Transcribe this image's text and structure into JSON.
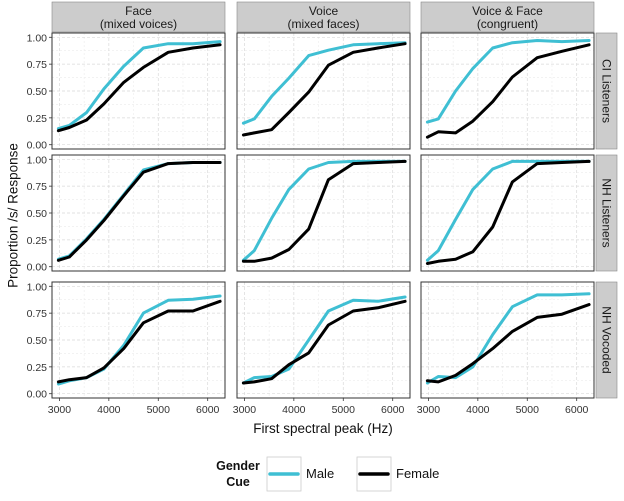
{
  "chart_data": {
    "type": "line",
    "ylabel": "Proportion /s/ Response",
    "xlabel": "First spectral peak (Hz)",
    "xlim": [
      2850,
      6350
    ],
    "ylim": [
      -0.04,
      1.04
    ],
    "x_ticks": [
      3000,
      4000,
      5000,
      6000
    ],
    "x_tick_labels": [
      "3000",
      "4000",
      "5000",
      "6000"
    ],
    "y_ticks": [
      0,
      0.25,
      0.5,
      0.75,
      1
    ],
    "y_tick_labels": [
      "0.00",
      "0.25",
      "0.50",
      "0.75",
      "1.00"
    ],
    "columns": [
      {
        "line1": "Face",
        "line2": "(mixed voices)"
      },
      {
        "line1": "Voice",
        "line2": "(mixed faces)"
      },
      {
        "line1": "Voice & Face",
        "line2": "(congruent)"
      }
    ],
    "rows": [
      "CI Listeners",
      "NH Listeners",
      "NH Vocoded"
    ],
    "legend": {
      "title_line1": "Gender",
      "title_line2": "Cue",
      "position": "bottom",
      "entries": [
        {
          "label": "Male",
          "color": "#3fbfd3"
        },
        {
          "label": "Female",
          "color": "#000000"
        }
      ]
    },
    "colors": {
      "male": "#3fbfd3",
      "female": "#000000",
      "strip": "#cccccc",
      "grid": "#d9d9d9"
    },
    "x": [
      2980,
      3200,
      3550,
      3900,
      4300,
      4700,
      5200,
      5700,
      6250
    ],
    "panels": [
      {
        "row": 0,
        "col": 0,
        "series": [
          {
            "name": "Male",
            "values": [
              0.15,
              0.18,
              0.3,
              0.52,
              0.73,
              0.9,
              0.94,
              0.94,
              0.96
            ]
          },
          {
            "name": "Female",
            "values": [
              0.13,
              0.16,
              0.23,
              0.38,
              0.58,
              0.72,
              0.86,
              0.9,
              0.93
            ]
          }
        ]
      },
      {
        "row": 0,
        "col": 1,
        "series": [
          {
            "name": "Male",
            "values": [
              0.2,
              0.24,
              0.45,
              0.62,
              0.83,
              0.88,
              0.93,
              0.94,
              0.95
            ]
          },
          {
            "name": "Female",
            "values": [
              0.09,
              0.11,
              0.14,
              0.3,
              0.49,
              0.74,
              0.86,
              0.9,
              0.94
            ]
          }
        ]
      },
      {
        "row": 0,
        "col": 2,
        "series": [
          {
            "name": "Male",
            "values": [
              0.21,
              0.24,
              0.5,
              0.71,
              0.9,
              0.95,
              0.97,
              0.96,
              0.97
            ]
          },
          {
            "name": "Female",
            "values": [
              0.07,
              0.12,
              0.11,
              0.22,
              0.4,
              0.63,
              0.81,
              0.87,
              0.93
            ]
          }
        ]
      },
      {
        "row": 1,
        "col": 0,
        "series": [
          {
            "name": "Male",
            "values": [
              0.07,
              0.1,
              0.26,
              0.44,
              0.67,
              0.9,
              0.96,
              0.97,
              0.97
            ]
          },
          {
            "name": "Female",
            "values": [
              0.06,
              0.09,
              0.25,
              0.43,
              0.66,
              0.88,
              0.96,
              0.97,
              0.97
            ]
          }
        ]
      },
      {
        "row": 1,
        "col": 1,
        "series": [
          {
            "name": "Male",
            "values": [
              0.06,
              0.15,
              0.45,
              0.72,
              0.91,
              0.97,
              0.98,
              0.98,
              0.98
            ]
          },
          {
            "name": "Female",
            "values": [
              0.05,
              0.05,
              0.08,
              0.16,
              0.35,
              0.81,
              0.96,
              0.97,
              0.98
            ]
          }
        ]
      },
      {
        "row": 1,
        "col": 2,
        "series": [
          {
            "name": "Male",
            "values": [
              0.06,
              0.15,
              0.44,
              0.72,
              0.91,
              0.98,
              0.98,
              0.98,
              0.98
            ]
          },
          {
            "name": "Female",
            "values": [
              0.03,
              0.05,
              0.07,
              0.14,
              0.37,
              0.79,
              0.96,
              0.97,
              0.98
            ]
          }
        ]
      },
      {
        "row": 2,
        "col": 0,
        "series": [
          {
            "name": "Male",
            "values": [
              0.09,
              0.12,
              0.15,
              0.23,
              0.45,
              0.75,
              0.87,
              0.88,
              0.91
            ]
          },
          {
            "name": "Female",
            "values": [
              0.11,
              0.13,
              0.15,
              0.24,
              0.42,
              0.66,
              0.77,
              0.77,
              0.86
            ]
          }
        ]
      },
      {
        "row": 2,
        "col": 1,
        "series": [
          {
            "name": "Male",
            "values": [
              0.1,
              0.15,
              0.16,
              0.23,
              0.5,
              0.77,
              0.87,
              0.86,
              0.9
            ]
          },
          {
            "name": "Female",
            "values": [
              0.1,
              0.11,
              0.14,
              0.27,
              0.38,
              0.64,
              0.77,
              0.8,
              0.86
            ]
          }
        ]
      },
      {
        "row": 2,
        "col": 2,
        "series": [
          {
            "name": "Male",
            "values": [
              0.1,
              0.16,
              0.15,
              0.25,
              0.55,
              0.81,
              0.92,
              0.92,
              0.93
            ]
          },
          {
            "name": "Female",
            "values": [
              0.12,
              0.11,
              0.17,
              0.28,
              0.42,
              0.58,
              0.71,
              0.74,
              0.83
            ]
          }
        ]
      }
    ]
  }
}
